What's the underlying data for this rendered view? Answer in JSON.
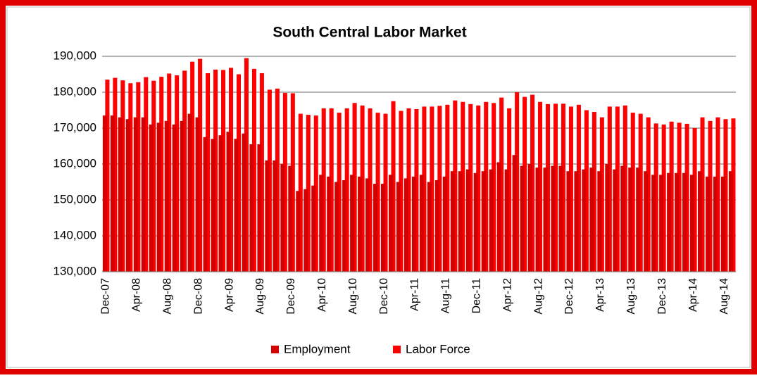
{
  "chart_data": {
    "type": "bar",
    "title": "South Central Labor Market",
    "categories": [
      "Dec-07",
      null,
      null,
      null,
      "Apr-08",
      null,
      null,
      null,
      "Aug-08",
      null,
      null,
      null,
      "Dec-08",
      null,
      null,
      null,
      "Apr-09",
      null,
      null,
      null,
      "Aug-09",
      null,
      null,
      null,
      "Dec-09",
      null,
      null,
      null,
      "Apr-10",
      null,
      null,
      null,
      "Aug-10",
      null,
      null,
      null,
      "Dec-10",
      null,
      null,
      null,
      "Apr-11",
      null,
      null,
      null,
      "Aug-11",
      null,
      null,
      null,
      "Dec-11",
      null,
      null,
      null,
      "Apr-12",
      null,
      null,
      null,
      "Aug-12",
      null,
      null,
      null,
      "Dec-12",
      null,
      null,
      null,
      "Apr-13",
      null,
      null,
      null,
      "Aug-13",
      null,
      null,
      null,
      "Dec-13",
      null,
      null,
      null,
      "Apr-14",
      null,
      null,
      null,
      "Aug-14",
      null
    ],
    "series": [
      {
        "name": "Employment",
        "color": "#d40000",
        "values": [
          173500,
          173500,
          173000,
          172500,
          173000,
          173000,
          171000,
          171500,
          172000,
          171000,
          172000,
          174000,
          173000,
          167500,
          167000,
          168000,
          169000,
          167000,
          168500,
          165500,
          165500,
          161000,
          161000,
          160000,
          159500,
          152500,
          153000,
          154000,
          157000,
          156500,
          155000,
          155500,
          157000,
          156500,
          156000,
          154500,
          154500,
          157000,
          155000,
          156000,
          156500,
          157000,
          155000,
          155500,
          156500,
          158000,
          158000,
          158500,
          157500,
          158000,
          158500,
          160500,
          158500,
          162500,
          159500,
          160000,
          159000,
          159000,
          159500,
          159500,
          158000,
          158000,
          158500,
          159000,
          158000,
          160000,
          158500,
          159500,
          159000,
          159000,
          158000,
          157000,
          157000,
          157500,
          157500,
          157500,
          157000,
          158000,
          156500,
          156500,
          156500,
          158000
        ]
      },
      {
        "name": "Labor Force",
        "color": "#ff0000",
        "values": [
          183500,
          184000,
          183300,
          182500,
          182800,
          184200,
          183200,
          184300,
          185200,
          184700,
          186000,
          188500,
          189300,
          185300,
          186300,
          186200,
          186800,
          185000,
          189500,
          186500,
          185300,
          180700,
          181000,
          179800,
          179700,
          174000,
          173700,
          173500,
          175500,
          175500,
          174300,
          175500,
          177000,
          176300,
          175500,
          174300,
          174000,
          177500,
          174800,
          175500,
          175300,
          176000,
          176000,
          176200,
          176500,
          177700,
          177300,
          176700,
          176300,
          177300,
          177000,
          178500,
          175500,
          180000,
          178700,
          179300,
          177300,
          176700,
          176800,
          176800,
          176000,
          176500,
          175000,
          174500,
          173000,
          176000,
          176000,
          176300,
          174300,
          174000,
          173000,
          171300,
          171000,
          171800,
          171500,
          171200,
          170000,
          173000,
          172000,
          173000,
          172500,
          172700
        ]
      }
    ],
    "ylim": [
      130000,
      190000
    ],
    "yticks": [
      {
        "value": 130000,
        "label": "130,000"
      },
      {
        "value": 140000,
        "label": "140,000"
      },
      {
        "value": 150000,
        "label": "150,000"
      },
      {
        "value": 160000,
        "label": "160,000"
      },
      {
        "value": 170000,
        "label": "170,000"
      },
      {
        "value": 180000,
        "label": "180,000"
      },
      {
        "value": 190000,
        "label": "190,000"
      }
    ],
    "grid": true,
    "legend": "bottom"
  }
}
